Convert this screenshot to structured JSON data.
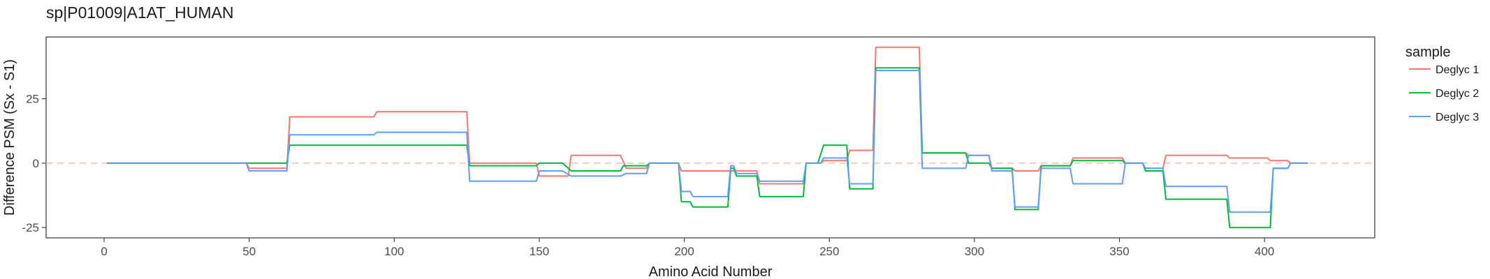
{
  "chart_data": {
    "type": "line",
    "title": "sp|P01009|A1AT_HUMAN",
    "xlabel": "Amino Acid Number",
    "ylabel": "Difference PSM (Sx - S1)",
    "xlim": [
      -20,
      438
    ],
    "ylim": [
      -29,
      49
    ],
    "xticks": [
      0,
      50,
      100,
      150,
      200,
      250,
      300,
      350,
      400
    ],
    "yticks": [
      -25,
      0,
      25
    ],
    "grid": false,
    "reference_line": {
      "y": 0,
      "style": "dashed",
      "color": "#f4b6b6"
    },
    "legend": {
      "title": "sample",
      "position": "right"
    },
    "series": [
      {
        "name": "Deglyc 1",
        "color": "#F8766D",
        "points": [
          [
            1,
            0
          ],
          [
            49,
            0
          ],
          [
            50,
            -2
          ],
          [
            63,
            -2
          ],
          [
            64,
            18
          ],
          [
            93,
            18
          ],
          [
            94,
            20
          ],
          [
            125,
            20
          ],
          [
            126,
            0
          ],
          [
            149,
            0
          ],
          [
            150,
            -5
          ],
          [
            160,
            -5
          ],
          [
            161,
            3
          ],
          [
            178,
            3
          ],
          [
            180,
            -2
          ],
          [
            187,
            -2
          ],
          [
            188,
            0
          ],
          [
            198,
            0
          ],
          [
            199,
            -3
          ],
          [
            215,
            -3
          ],
          [
            216,
            -3
          ],
          [
            225,
            -3
          ],
          [
            226,
            -8
          ],
          [
            241,
            -8
          ],
          [
            242,
            0
          ],
          [
            247,
            0
          ],
          [
            248,
            1
          ],
          [
            256,
            1
          ],
          [
            257,
            5
          ],
          [
            265,
            5
          ],
          [
            266,
            45
          ],
          [
            281,
            45
          ],
          [
            282,
            4
          ],
          [
            297,
            4
          ],
          [
            298,
            3
          ],
          [
            305,
            3
          ],
          [
            306,
            -2
          ],
          [
            313,
            -2
          ],
          [
            314,
            -3
          ],
          [
            322,
            -3
          ],
          [
            323,
            -1
          ],
          [
            333,
            -1
          ],
          [
            334,
            2
          ],
          [
            351,
            2
          ],
          [
            352,
            0
          ],
          [
            358,
            0
          ],
          [
            359,
            -2
          ],
          [
            365,
            -2
          ],
          [
            366,
            3
          ],
          [
            387,
            3
          ],
          [
            388,
            2
          ],
          [
            401,
            2
          ],
          [
            402,
            1
          ],
          [
            408,
            1
          ],
          [
            409,
            0
          ],
          [
            415,
            0
          ]
        ]
      },
      {
        "name": "Deglyc 2",
        "color": "#00BA38",
        "points": [
          [
            1,
            0
          ],
          [
            63,
            0
          ],
          [
            64,
            7
          ],
          [
            125,
            7
          ],
          [
            126,
            -1
          ],
          [
            149,
            -1
          ],
          [
            150,
            0
          ],
          [
            158,
            0
          ],
          [
            161,
            -3
          ],
          [
            178,
            -3
          ],
          [
            179,
            -1
          ],
          [
            187,
            -1
          ],
          [
            188,
            0
          ],
          [
            198,
            0
          ],
          [
            199,
            -15
          ],
          [
            202,
            -15
          ],
          [
            203,
            -17
          ],
          [
            215,
            -17
          ],
          [
            216,
            -2
          ],
          [
            217,
            -2
          ],
          [
            218,
            -5
          ],
          [
            225,
            -5
          ],
          [
            226,
            -13
          ],
          [
            241,
            -13
          ],
          [
            242,
            0
          ],
          [
            246,
            0
          ],
          [
            248,
            7
          ],
          [
            256,
            7
          ],
          [
            257,
            -10
          ],
          [
            265,
            -10
          ],
          [
            266,
            37
          ],
          [
            281,
            37
          ],
          [
            282,
            4
          ],
          [
            297,
            4
          ],
          [
            298,
            0
          ],
          [
            305,
            0
          ],
          [
            306,
            -2
          ],
          [
            313,
            -2
          ],
          [
            314,
            -18
          ],
          [
            322,
            -18
          ],
          [
            323,
            -1
          ],
          [
            333,
            -1
          ],
          [
            334,
            1
          ],
          [
            351,
            1
          ],
          [
            352,
            0
          ],
          [
            358,
            0
          ],
          [
            359,
            -3
          ],
          [
            365,
            -3
          ],
          [
            366,
            -14
          ],
          [
            387,
            -14
          ],
          [
            388,
            -25
          ],
          [
            402,
            -25
          ],
          [
            403,
            -2
          ],
          [
            408,
            -2
          ],
          [
            409,
            0
          ],
          [
            415,
            0
          ]
        ]
      },
      {
        "name": "Deglyc 3",
        "color": "#619CFF",
        "points": [
          [
            1,
            0
          ],
          [
            49,
            0
          ],
          [
            50,
            -3
          ],
          [
            63,
            -3
          ],
          [
            64,
            11
          ],
          [
            93,
            11
          ],
          [
            94,
            12
          ],
          [
            125,
            12
          ],
          [
            126,
            -7
          ],
          [
            149,
            -7
          ],
          [
            150,
            -3
          ],
          [
            158,
            -3
          ],
          [
            161,
            -5
          ],
          [
            178,
            -5
          ],
          [
            180,
            -4
          ],
          [
            187,
            -4
          ],
          [
            188,
            0
          ],
          [
            198,
            0
          ],
          [
            199,
            -11
          ],
          [
            202,
            -11
          ],
          [
            203,
            -13
          ],
          [
            215,
            -13
          ],
          [
            216,
            -1
          ],
          [
            217,
            -1
          ],
          [
            218,
            -4
          ],
          [
            225,
            -4
          ],
          [
            226,
            -7
          ],
          [
            241,
            -7
          ],
          [
            242,
            0
          ],
          [
            247,
            0
          ],
          [
            248,
            2
          ],
          [
            256,
            2
          ],
          [
            257,
            -8
          ],
          [
            265,
            -8
          ],
          [
            266,
            36
          ],
          [
            281,
            36
          ],
          [
            282,
            -2
          ],
          [
            297,
            -2
          ],
          [
            298,
            3
          ],
          [
            305,
            3
          ],
          [
            306,
            -3
          ],
          [
            313,
            -3
          ],
          [
            314,
            -17
          ],
          [
            322,
            -17
          ],
          [
            323,
            -2
          ],
          [
            333,
            -2
          ],
          [
            334,
            -8
          ],
          [
            351,
            -8
          ],
          [
            352,
            0
          ],
          [
            358,
            0
          ],
          [
            359,
            -2
          ],
          [
            365,
            -2
          ],
          [
            366,
            -9
          ],
          [
            387,
            -9
          ],
          [
            388,
            -19
          ],
          [
            402,
            -19
          ],
          [
            403,
            -2
          ],
          [
            408,
            -2
          ],
          [
            409,
            0
          ],
          [
            415,
            0
          ]
        ]
      }
    ]
  }
}
